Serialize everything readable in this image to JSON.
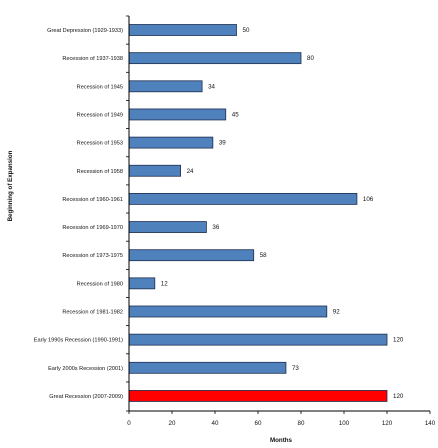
{
  "chart_data": {
    "type": "bar",
    "orientation": "horizontal",
    "categories": [
      "Great Depression (1929-1933)",
      "Recession of 1937-1938",
      "Recession of 1945",
      "Recession of 1949",
      "Recession of 1953",
      "Recession of 1958",
      "Recession of 1960-1961",
      "Recession of 1969-1970",
      "Recession of 1973-1975",
      "Recession of 1980",
      "Recession of 1981-1982",
      "Early 1990s Recession (1990-1991)",
      "Early 2000s Recession (2001)",
      "Great Recession (2007-2009)"
    ],
    "values": [
      50,
      80,
      34,
      45,
      39,
      24,
      106,
      36,
      58,
      12,
      92,
      120,
      73,
      120
    ],
    "value_labels": [
      "50",
      "80",
      "34",
      "45",
      "39",
      "24",
      "106",
      "36",
      "58",
      "12",
      "92",
      "120",
      "73",
      "120"
    ],
    "title": "",
    "xlabel": "Months",
    "ylabel": "Beginning of Expansion",
    "xlim": [
      0,
      140
    ],
    "x_ticks": [
      0,
      20,
      40,
      60,
      80,
      100,
      120,
      140
    ],
    "x_tick_labels": [
      "0",
      "20",
      "40",
      "60",
      "80",
      "100",
      "120",
      "140"
    ],
    "grid": false,
    "legend": "none",
    "bar_color": "#4F81BD",
    "bar_edge_color": "#1F2F4F",
    "highlight_index": 13,
    "highlight_color": "#FF0000"
  }
}
